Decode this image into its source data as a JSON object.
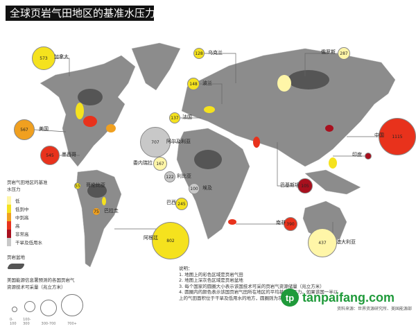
{
  "title": "全球页岩气田地区的基准水压力",
  "colors": {
    "low": "#fff6a8",
    "low_mid": "#f5e21e",
    "mid_high": "#f0a020",
    "high": "#e8321c",
    "very_high": "#a8101e",
    "arid": "#c8c8c8",
    "land": "#8c8c8c",
    "basin": "#555555"
  },
  "countries": [
    {
      "name": "加拿大",
      "value": "573",
      "level": "low_mid"
    },
    {
      "name": "美国",
      "value": "567",
      "level": "mid_high"
    },
    {
      "name": "墨西哥",
      "value": "545",
      "level": "high"
    },
    {
      "name": "乌克兰",
      "value": "128",
      "level": "low_mid"
    },
    {
      "name": "波兰",
      "value": "148",
      "level": "low_mid"
    },
    {
      "name": "法国",
      "value": "137",
      "level": "low_mid"
    },
    {
      "name": "阿尔及利亚",
      "value": "707",
      "level": "arid"
    },
    {
      "name": "委内瑞拉",
      "value": "167",
      "level": "low"
    },
    {
      "name": "利比亚",
      "value": "122",
      "level": "arid"
    },
    {
      "name": "埃及",
      "value": "100",
      "level": "arid"
    },
    {
      "name": "巴西",
      "value": "245",
      "level": "low_mid"
    },
    {
      "name": "阿根廷",
      "value": "802",
      "level": "low_mid"
    },
    {
      "name": "南非",
      "value": "390",
      "level": "high"
    },
    {
      "name": "巴基斯坦",
      "value": "105",
      "level": "very_high"
    },
    {
      "name": "中国",
      "value": "1115",
      "level": "high"
    },
    {
      "name": "印度",
      "value": "",
      "level": "very_high"
    },
    {
      "name": "俄罗斯",
      "value": "287",
      "level": "low"
    },
    {
      "name": "澳大利亚",
      "value": "437",
      "level": "low"
    },
    {
      "name": "哥伦比亚",
      "value": "55",
      "level": "low_mid"
    },
    {
      "name": "巴拉圭",
      "value": "75",
      "level": "mid_high"
    }
  ],
  "legend": {
    "title": "页岩气田地区的基准水压力",
    "items": [
      "低",
      "低到中",
      "中到高",
      "高",
      "非常高",
      "干旱及低用水"
    ],
    "basin_label": "页岩盆地",
    "size_title": "美国能源信息署预测的各国页岩气资源技术可采量（兆立方米）",
    "size_ticks": [
      "0-100",
      "100-300",
      "300-700",
      "700+"
    ]
  },
  "notes": {
    "heading": "说明：",
    "lines": [
      "1. 地图上的彩色区域是页岩气田",
      "2. 地图上深灰色区域是页岩盆地",
      "3. 每个国家的圆圈大小表示该国技术可采的页岩气资源储量（兆立方米）",
      "4. 圆圈内的颜色表示该国页岩气田所在地区的平均基准水压力。如果该国一半以上的气田面积位于干旱及低用水的地方，圆圈则为灰色。"
    ]
  },
  "watermark": "tanpaifang.com",
  "source": "资料来源：世界资源研究所、美国能源部"
}
